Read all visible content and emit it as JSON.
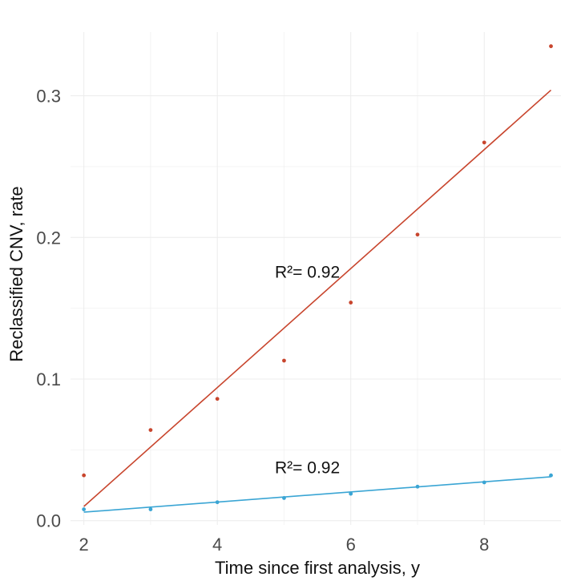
{
  "chart_data": {
    "type": "scatter",
    "title": "",
    "xlabel": "Time since first analysis, y",
    "ylabel": "Reclassified CNV, rate",
    "xlim": [
      1.8,
      9.15
    ],
    "ylim": [
      -0.003,
      0.345
    ],
    "x_ticks": [
      2,
      4,
      6,
      8
    ],
    "y_ticks": [
      0.0,
      0.1,
      0.2,
      0.3
    ],
    "x_tick_labels": [
      "2",
      "4",
      "6",
      "8"
    ],
    "y_tick_labels": [
      "0.0",
      "0.1",
      "0.2",
      "0.3"
    ],
    "grid": true,
    "series": [
      {
        "color": "#c8452d",
        "x": [
          2,
          3,
          4,
          5,
          6,
          7,
          8,
          9
        ],
        "y": [
          0.032,
          0.064,
          0.086,
          0.113,
          0.154,
          0.202,
          0.267,
          0.335
        ],
        "trend": {
          "x": [
            2,
            9
          ],
          "y": [
            0.01,
            0.304
          ]
        }
      },
      {
        "color": "#3aa5d4",
        "x": [
          2,
          3,
          4,
          5,
          6,
          7,
          8,
          9
        ],
        "y": [
          0.008,
          0.008,
          0.013,
          0.016,
          0.019,
          0.024,
          0.027,
          0.032
        ],
        "trend": {
          "x": [
            2,
            9
          ],
          "y": [
            0.006,
            0.031
          ]
        }
      }
    ],
    "annotations": [
      {
        "text": "R²= 0.92",
        "x": 5.35,
        "y": 0.176
      },
      {
        "text": "R²= 0.92",
        "x": 5.35,
        "y": 0.038
      }
    ]
  }
}
